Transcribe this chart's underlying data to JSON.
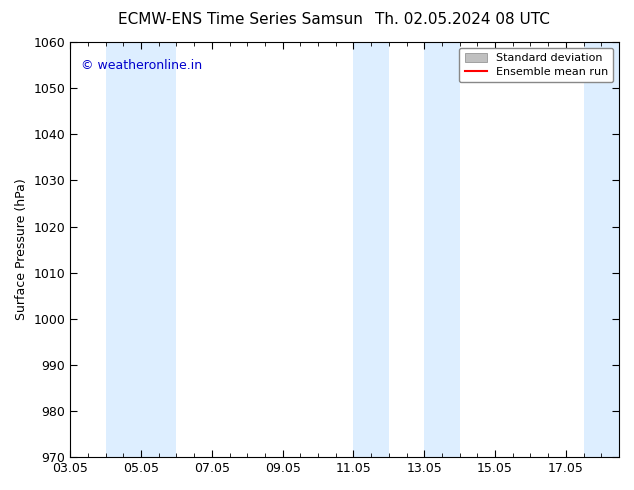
{
  "title_left": "ECMW-ENS Time Series Samsun",
  "title_right": "Th. 02.05.2024 08 UTC",
  "ylabel": "Surface Pressure (hPa)",
  "ylim": [
    970,
    1060
  ],
  "yticks": [
    970,
    980,
    990,
    1000,
    1010,
    1020,
    1030,
    1040,
    1050,
    1060
  ],
  "xtick_labels": [
    "03.05",
    "05.05",
    "07.05",
    "09.05",
    "11.05",
    "13.05",
    "15.05",
    "17.05"
  ],
  "xtick_positions": [
    0,
    2,
    4,
    6,
    8,
    10,
    12,
    14
  ],
  "xlim": [
    0,
    15.5
  ],
  "shaded_bands": [
    {
      "x_start": 1.0,
      "x_end": 3.0,
      "color": "#ddeeff"
    },
    {
      "x_start": 8.0,
      "x_end": 9.0,
      "color": "#ddeeff"
    },
    {
      "x_start": 10.0,
      "x_end": 11.0,
      "color": "#ddeeff"
    },
    {
      "x_start": 14.5,
      "x_end": 15.5,
      "color": "#ddeeff"
    }
  ],
  "watermark_text": "© weatheronline.in",
  "watermark_color": "#0000cc",
  "watermark_fontsize": 9,
  "legend_std_color": "#c0c0c0",
  "legend_mean_color": "#ff0000",
  "background_color": "#ffffff",
  "title_fontsize": 11,
  "tick_label_fontsize": 9,
  "ylabel_fontsize": 9
}
